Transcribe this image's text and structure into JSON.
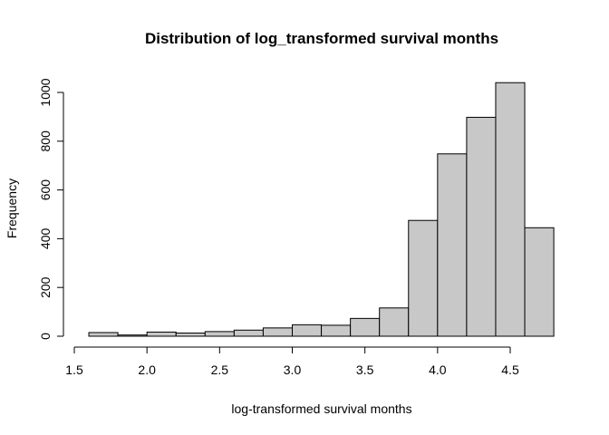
{
  "chart_data": {
    "type": "bar",
    "title": "Distribution of log_transformed survival months",
    "xlabel": "log-transformed survival months",
    "ylabel": "Frequency",
    "bin_edges": [
      1.6,
      1.8,
      2.0,
      2.2,
      2.4,
      2.6,
      2.8,
      3.0,
      3.2,
      3.4,
      3.6,
      3.8,
      4.0,
      4.2,
      4.4,
      4.6,
      4.8
    ],
    "values": [
      15,
      5,
      17,
      13,
      19,
      25,
      34,
      47,
      45,
      73,
      116,
      475,
      748,
      898,
      1040,
      445
    ],
    "xlim": [
      1.5,
      4.8
    ],
    "ylim": [
      0,
      1050
    ],
    "xticks": [
      1.5,
      2.0,
      2.5,
      3.0,
      3.5,
      4.0,
      4.5
    ],
    "xtick_labels": [
      "1.5",
      "2.0",
      "2.5",
      "3.0",
      "3.5",
      "4.0",
      "4.5"
    ],
    "yticks": [
      0,
      200,
      400,
      600,
      800,
      1000
    ],
    "ytick_labels": [
      "0",
      "200",
      "400",
      "600",
      "800",
      "1000"
    ],
    "grid": false,
    "colors": {
      "bar_fill": "#c8c8c8",
      "bar_stroke": "#000000"
    }
  }
}
